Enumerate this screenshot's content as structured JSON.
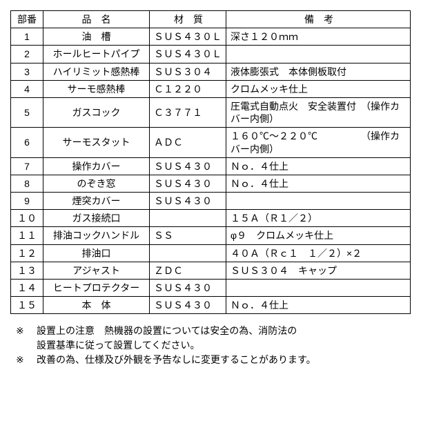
{
  "table": {
    "headers": {
      "num": "部番",
      "name": "品　名",
      "material": "材　質",
      "remarks": "備　考"
    },
    "rows": [
      {
        "num": "1",
        "name": "油　槽",
        "material": "ＳＵＳ４３０Ｌ",
        "remarks": "深さ１２０ｍｍ"
      },
      {
        "num": "2",
        "name": "ホールヒートパイプ",
        "material": "ＳＵＳ４３０Ｌ",
        "remarks": ""
      },
      {
        "num": "3",
        "name": "ハイリミット感熱棒",
        "material": "ＳＵＳ３０４",
        "remarks": "液体膨張式　本体側板取付"
      },
      {
        "num": "4",
        "name": "サーモ感熱棒",
        "material": "Ｃ１２２０",
        "remarks": "クロムメッキ仕上"
      },
      {
        "num": "5",
        "name": "ガスコック",
        "material": "Ｃ３７７１",
        "remarks": "圧電式自動点火　安全装置付　（操作カバー内側）"
      },
      {
        "num": "6",
        "name": "サーモスタット",
        "material": "ＡＤＣ",
        "remarks": "１６０℃～２２０℃　　　　　（操作カバー内側）"
      },
      {
        "num": "7",
        "name": "操作カバー",
        "material": "ＳＵＳ４３０",
        "remarks": "Ｎｏ．４仕上"
      },
      {
        "num": "8",
        "name": "のぞき窓",
        "material": "ＳＵＳ４３０",
        "remarks": "Ｎｏ．４仕上"
      },
      {
        "num": "9",
        "name": "煙突カバー",
        "material": "ＳＵＳ４３０",
        "remarks": ""
      },
      {
        "num": "１０",
        "name": "ガス接続口",
        "material": "",
        "remarks": "１５Ａ（Ｒ１／２）"
      },
      {
        "num": "１１",
        "name": "排油コックハンドル",
        "material": "ＳＳ",
        "remarks": "φ９　クロムメッキ仕上"
      },
      {
        "num": "１２",
        "name": "排油口",
        "material": "",
        "remarks": "４０Ａ（Ｒｃ１　１／２）×２"
      },
      {
        "num": "１３",
        "name": "アジャスト",
        "material": "ＺＤＣ",
        "remarks": "ＳＵＳ３０４　キャップ"
      },
      {
        "num": "１４",
        "name": "ヒートプロテクター",
        "material": "ＳＵＳ４３０",
        "remarks": ""
      },
      {
        "num": "１５",
        "name": "本　体",
        "material": "ＳＵＳ４３０",
        "remarks": "Ｎｏ．４仕上"
      }
    ],
    "multiline_rows": [
      5,
      6
    ]
  },
  "notes": {
    "marker": "※",
    "items": [
      {
        "line1": "設置上の注意　熱機器の設置については安全の為、消防法の",
        "line2": "設置基準に従って設置してください。"
      },
      {
        "line1": "改善の為、仕様及び外観を予告なしに変更することがあります。",
        "line2": ""
      }
    ]
  }
}
